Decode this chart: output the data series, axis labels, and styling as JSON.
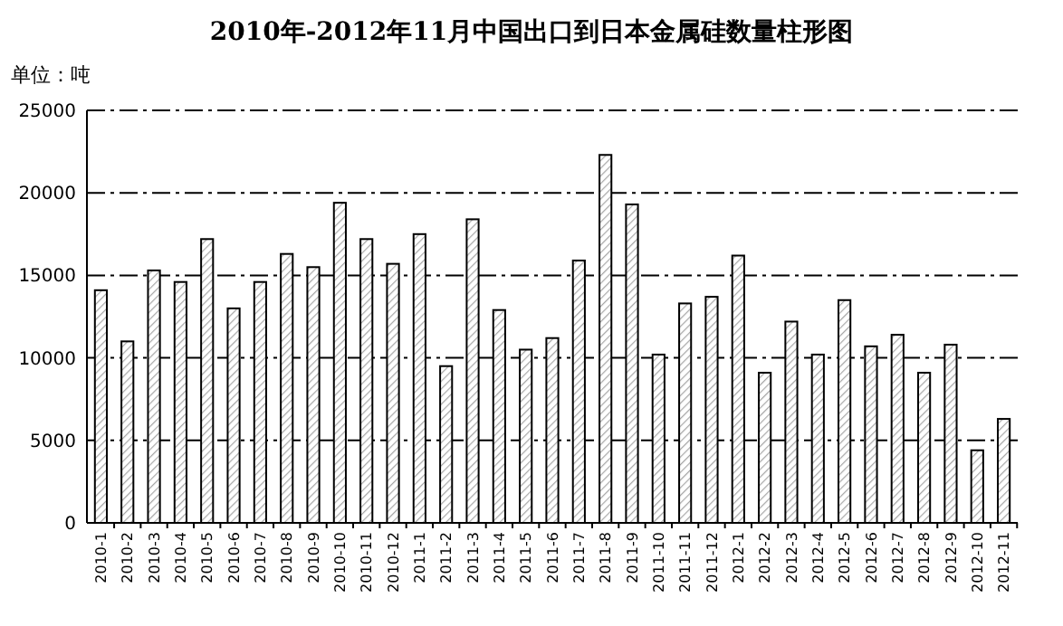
{
  "chart_data": {
    "type": "bar",
    "title": "2010年-2012年11月中国出口到日本金属硅数量柱形图",
    "annotations": [
      "单位：吨"
    ],
    "categories": [
      "2010-1",
      "2010-2",
      "2010-3",
      "2010-4",
      "2010-5",
      "2010-6",
      "2010-7",
      "2010-8",
      "2010-9",
      "2010-10",
      "2010-11",
      "2010-12",
      "2011-1",
      "2011-2",
      "2011-3",
      "2011-4",
      "2011-5",
      "2011-6",
      "2011-7",
      "2011-8",
      "2011-9",
      "2011-10",
      "2011-11",
      "2011-12",
      "2012-1",
      "2012-2",
      "2012-3",
      "2012-4",
      "2012-5",
      "2012-6",
      "2012-7",
      "2012-8",
      "2012-9",
      "2012-10",
      "2012-11"
    ],
    "values": [
      14100,
      11000,
      15300,
      14600,
      17200,
      13000,
      14600,
      16300,
      15500,
      19400,
      17200,
      15700,
      17500,
      9500,
      18400,
      12900,
      10500,
      11200,
      15900,
      22300,
      19300,
      10200,
      13300,
      13700,
      16200,
      9100,
      12200,
      10200,
      13500,
      10700,
      11400,
      9100,
      10800,
      4400,
      6300
    ],
    "color": "#000000",
    "ylim": [
      0,
      25000
    ],
    "yticks": [
      0,
      5000,
      10000,
      15000,
      20000,
      25000
    ],
    "grid": "y"
  }
}
